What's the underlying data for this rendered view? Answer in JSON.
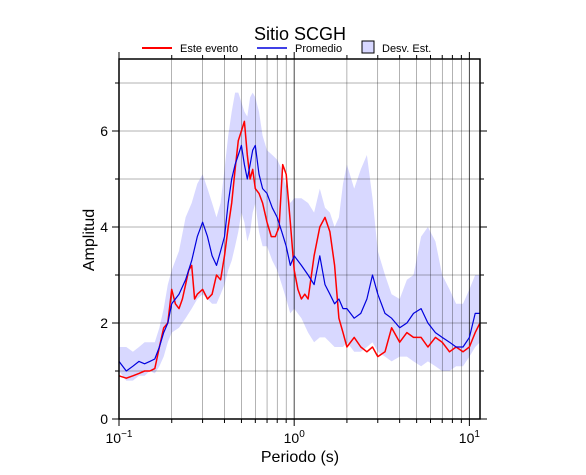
{
  "chart_data": {
    "type": "line",
    "title": "Sitio SCGH",
    "xlabel": "Periodo (s)",
    "ylabel": "Amplitud",
    "xscale": "log",
    "xlim": [
      0.1,
      11.5
    ],
    "ylim": [
      0,
      7.5
    ],
    "x_ticks": [
      {
        "value": 0.1,
        "base": "10",
        "exp": "−1"
      },
      {
        "value": 1,
        "base": "10",
        "exp": "0"
      },
      {
        "value": 10,
        "base": "10",
        "exp": "1"
      }
    ],
    "y_ticks": [
      0,
      2,
      4,
      6
    ],
    "grid": true,
    "legend_position": "top",
    "legend": {
      "event": "Este evento",
      "mean": "Promedio",
      "std": "Desv. Est."
    },
    "colors": {
      "event": "#ff0000",
      "mean": "#0000dd",
      "std_fill": "#d8d8ff"
    },
    "series": [
      {
        "name": "Este evento",
        "x": [
          0.1,
          0.11,
          0.12,
          0.13,
          0.14,
          0.15,
          0.16,
          0.17,
          0.18,
          0.19,
          0.2,
          0.21,
          0.22,
          0.23,
          0.24,
          0.25,
          0.26,
          0.27,
          0.28,
          0.3,
          0.32,
          0.34,
          0.36,
          0.38,
          0.4,
          0.42,
          0.44,
          0.46,
          0.48,
          0.5,
          0.52,
          0.54,
          0.56,
          0.58,
          0.6,
          0.63,
          0.66,
          0.7,
          0.74,
          0.78,
          0.82,
          0.86,
          0.9,
          0.95,
          1.0,
          1.05,
          1.1,
          1.15,
          1.2,
          1.3,
          1.4,
          1.5,
          1.6,
          1.7,
          1.8,
          1.9,
          2.0,
          2.2,
          2.4,
          2.6,
          2.8,
          3.0,
          3.3,
          3.6,
          4.0,
          4.4,
          4.8,
          5.3,
          5.8,
          6.4,
          7.0,
          7.7,
          8.4,
          9.2,
          10.0,
          10.8,
          11.5
        ],
        "values": [
          0.9,
          0.85,
          0.9,
          0.95,
          1.0,
          1.0,
          1.05,
          1.5,
          1.9,
          2.0,
          2.7,
          2.4,
          2.3,
          2.5,
          2.8,
          3.1,
          3.2,
          2.5,
          2.6,
          2.7,
          2.5,
          2.6,
          3.0,
          2.9,
          3.4,
          4.0,
          4.5,
          5.2,
          5.8,
          6.0,
          6.2,
          5.5,
          5.0,
          5.2,
          4.8,
          4.7,
          4.5,
          4.1,
          3.8,
          3.8,
          4.0,
          5.3,
          5.1,
          4.1,
          3.1,
          2.7,
          2.5,
          2.6,
          2.5,
          3.4,
          4.0,
          4.2,
          3.9,
          3.2,
          2.1,
          1.8,
          1.5,
          1.7,
          1.5,
          1.4,
          1.5,
          1.3,
          1.4,
          1.9,
          1.6,
          1.8,
          1.7,
          1.7,
          1.5,
          1.7,
          1.6,
          1.4,
          1.5,
          1.4,
          1.5,
          1.8,
          2.0
        ]
      },
      {
        "name": "Promedio",
        "x": [
          0.1,
          0.11,
          0.12,
          0.13,
          0.14,
          0.15,
          0.16,
          0.17,
          0.18,
          0.19,
          0.2,
          0.22,
          0.24,
          0.26,
          0.28,
          0.3,
          0.32,
          0.34,
          0.36,
          0.38,
          0.4,
          0.42,
          0.44,
          0.46,
          0.48,
          0.5,
          0.52,
          0.54,
          0.56,
          0.58,
          0.6,
          0.63,
          0.66,
          0.7,
          0.75,
          0.8,
          0.85,
          0.9,
          0.95,
          1.0,
          1.1,
          1.2,
          1.3,
          1.4,
          1.5,
          1.6,
          1.7,
          1.8,
          1.9,
          2.0,
          2.2,
          2.4,
          2.6,
          2.8,
          3.0,
          3.3,
          3.6,
          4.0,
          4.4,
          4.8,
          5.3,
          5.8,
          6.4,
          7.0,
          7.7,
          8.4,
          9.2,
          10.0,
          10.8,
          11.5
        ],
        "values": [
          1.2,
          1.0,
          1.1,
          1.2,
          1.15,
          1.2,
          1.25,
          1.5,
          1.8,
          2.0,
          2.4,
          2.6,
          2.9,
          3.3,
          3.8,
          4.1,
          3.8,
          3.4,
          3.2,
          3.5,
          3.8,
          4.5,
          5.0,
          5.3,
          5.5,
          5.7,
          5.3,
          5.0,
          5.3,
          5.6,
          5.7,
          5.1,
          4.8,
          4.7,
          4.4,
          4.2,
          3.9,
          3.6,
          3.2,
          3.4,
          3.2,
          3.0,
          2.8,
          3.4,
          2.8,
          2.6,
          2.4,
          2.5,
          2.3,
          2.3,
          2.1,
          2.2,
          2.5,
          3.0,
          2.6,
          2.2,
          2.1,
          1.9,
          2.0,
          2.2,
          2.3,
          2.0,
          1.8,
          1.7,
          1.6,
          1.5,
          1.5,
          1.7,
          2.2,
          2.2
        ]
      }
    ],
    "std_band": {
      "name": "Desv. Est.",
      "x": [
        0.1,
        0.11,
        0.12,
        0.13,
        0.14,
        0.15,
        0.16,
        0.17,
        0.18,
        0.19,
        0.2,
        0.22,
        0.24,
        0.26,
        0.28,
        0.3,
        0.32,
        0.34,
        0.36,
        0.38,
        0.4,
        0.42,
        0.44,
        0.46,
        0.48,
        0.5,
        0.52,
        0.54,
        0.56,
        0.58,
        0.6,
        0.63,
        0.66,
        0.7,
        0.75,
        0.8,
        0.85,
        0.9,
        0.95,
        1.0,
        1.1,
        1.2,
        1.3,
        1.4,
        1.5,
        1.6,
        1.7,
        1.8,
        1.9,
        2.0,
        2.2,
        2.4,
        2.6,
        2.8,
        3.0,
        3.3,
        3.6,
        4.0,
        4.4,
        4.8,
        5.3,
        5.8,
        6.4,
        7.0,
        7.7,
        8.4,
        9.2,
        10.0,
        10.8,
        11.5
      ],
      "upper": [
        1.5,
        1.5,
        1.4,
        1.5,
        1.6,
        1.6,
        1.6,
        1.9,
        2.3,
        2.8,
        3.1,
        3.5,
        4.2,
        4.5,
        4.9,
        5.1,
        4.8,
        4.5,
        4.2,
        4.5,
        5.2,
        5.9,
        6.4,
        6.8,
        6.8,
        6.6,
        6.4,
        6.3,
        6.7,
        6.8,
        6.7,
        6.4,
        5.9,
        5.6,
        5.5,
        5.4,
        5.2,
        4.8,
        4.5,
        4.6,
        4.6,
        4.5,
        4.3,
        4.8,
        4.4,
        4.3,
        4.0,
        4.2,
        4.9,
        5.3,
        4.8,
        5.2,
        5.5,
        4.6,
        3.5,
        3.0,
        2.6,
        2.5,
        2.9,
        3.0,
        3.8,
        4.0,
        3.7,
        3.0,
        2.7,
        2.4,
        2.4,
        2.7,
        3.0,
        3.0
      ],
      "lower": [
        1.0,
        0.8,
        0.8,
        0.9,
        0.9,
        1.0,
        0.95,
        1.1,
        1.3,
        1.6,
        1.8,
        1.9,
        2.1,
        2.3,
        2.5,
        2.6,
        2.5,
        2.4,
        2.4,
        2.6,
        2.8,
        3.1,
        3.3,
        3.6,
        3.9,
        4.3,
        4.1,
        3.7,
        3.9,
        4.3,
        4.5,
        3.9,
        3.6,
        3.6,
        3.3,
        3.1,
        2.8,
        2.5,
        2.2,
        2.3,
        2.1,
        1.8,
        1.6,
        1.7,
        1.7,
        1.6,
        1.5,
        1.5,
        1.5,
        1.6,
        1.4,
        1.4,
        1.5,
        1.6,
        1.4,
        1.3,
        1.2,
        1.3,
        1.3,
        1.2,
        1.1,
        1.2,
        1.1,
        1.0,
        1.0,
        1.1,
        1.1,
        1.3,
        1.5,
        1.6
      ]
    }
  }
}
